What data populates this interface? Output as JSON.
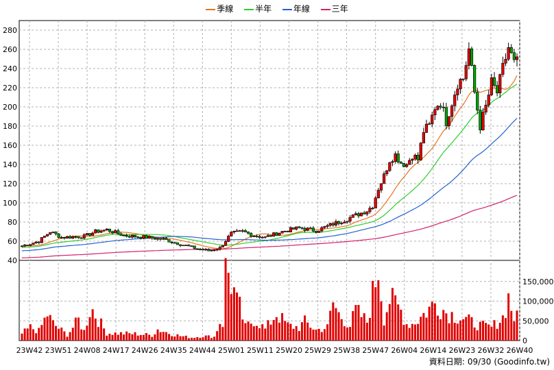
{
  "chart_data": {
    "type": "candlestick",
    "legend": [
      {
        "name": "季線",
        "color": "#e8731a"
      },
      {
        "name": "半年",
        "color": "#2ecc2e"
      },
      {
        "name": "年線",
        "color": "#2060d0"
      },
      {
        "name": "三年",
        "color": "#d0206a"
      }
    ],
    "price_axis": {
      "ylim": [
        40,
        290
      ],
      "ticks": [
        40,
        60,
        80,
        100,
        120,
        140,
        160,
        180,
        200,
        220,
        240,
        260,
        280
      ]
    },
    "volume_axis": {
      "ylim": [
        0,
        200000
      ],
      "ticks": [
        0,
        50000,
        100000,
        150000
      ],
      "tick_labels": [
        "0",
        "50,000",
        "100,000",
        "150,000"
      ]
    },
    "x_ticks": [
      "23W42",
      "23W51",
      "24W08",
      "24W17",
      "24W26",
      "24W35",
      "24W44",
      "25W01",
      "25W11",
      "25W20",
      "25W29",
      "25W38",
      "25W47",
      "26W04",
      "26W14",
      "26W23",
      "26W32",
      "26W40"
    ],
    "close_anchors": [
      [
        0,
        55
      ],
      [
        6,
        60
      ],
      [
        10,
        70
      ],
      [
        14,
        64
      ],
      [
        22,
        65
      ],
      [
        26,
        70
      ],
      [
        30,
        72
      ],
      [
        36,
        66
      ],
      [
        44,
        64
      ],
      [
        50,
        62
      ],
      [
        56,
        57
      ],
      [
        62,
        52
      ],
      [
        66,
        50
      ],
      [
        70,
        53
      ],
      [
        74,
        68
      ],
      [
        78,
        70
      ],
      [
        82,
        66
      ],
      [
        86,
        64
      ],
      [
        92,
        70
      ],
      [
        98,
        74
      ],
      [
        104,
        71
      ],
      [
        110,
        78
      ],
      [
        114,
        82
      ],
      [
        118,
        87
      ],
      [
        122,
        92
      ],
      [
        124,
        97
      ],
      [
        126,
        115
      ],
      [
        128,
        128
      ],
      [
        130,
        145
      ],
      [
        132,
        150
      ],
      [
        134,
        142
      ],
      [
        136,
        140
      ],
      [
        138,
        150
      ],
      [
        140,
        145
      ],
      [
        142,
        175
      ],
      [
        144,
        180
      ],
      [
        146,
        200
      ],
      [
        148,
        205
      ],
      [
        150,
        185
      ],
      [
        152,
        205
      ],
      [
        154,
        225
      ],
      [
        156,
        230
      ],
      [
        158,
        260
      ],
      [
        160,
        215
      ],
      [
        162,
        180
      ],
      [
        164,
        200
      ],
      [
        166,
        225
      ],
      [
        168,
        215
      ],
      [
        170,
        240
      ],
      [
        172,
        262
      ],
      [
        174,
        245
      ]
    ],
    "volume_anchors": [
      [
        0,
        18000
      ],
      [
        3,
        35000
      ],
      [
        6,
        25000
      ],
      [
        9,
        70000
      ],
      [
        11,
        45000
      ],
      [
        16,
        15000
      ],
      [
        20,
        55000
      ],
      [
        22,
        25000
      ],
      [
        24,
        80000
      ],
      [
        25,
        82000
      ],
      [
        26,
        68000
      ],
      [
        30,
        20000
      ],
      [
        40,
        18000
      ],
      [
        46,
        14000
      ],
      [
        48,
        30000
      ],
      [
        52,
        20000
      ],
      [
        56,
        12000
      ],
      [
        60,
        8000
      ],
      [
        64,
        12000
      ],
      [
        68,
        10000
      ],
      [
        70,
        50000
      ],
      [
        71,
        45000
      ],
      [
        72,
        188000
      ],
      [
        73,
        182000
      ],
      [
        74,
        155000
      ],
      [
        75,
        130000
      ],
      [
        76,
        100000
      ],
      [
        77,
        88000
      ],
      [
        79,
        35000
      ],
      [
        82,
        55000
      ],
      [
        84,
        45000
      ],
      [
        86,
        30000
      ],
      [
        90,
        72000
      ],
      [
        94,
        40000
      ],
      [
        98,
        35000
      ],
      [
        100,
        50000
      ],
      [
        104,
        28000
      ],
      [
        108,
        35000
      ],
      [
        110,
        100000
      ],
      [
        112,
        70000
      ],
      [
        116,
        40000
      ],
      [
        118,
        80000
      ],
      [
        122,
        50000
      ],
      [
        126,
        198000
      ],
      [
        128,
        60000
      ],
      [
        130,
        110000
      ],
      [
        132,
        98000
      ],
      [
        134,
        80000
      ],
      [
        136,
        45000
      ],
      [
        138,
        45000
      ],
      [
        140,
        55000
      ],
      [
        144,
        85000
      ],
      [
        146,
        100000
      ],
      [
        148,
        90000
      ],
      [
        150,
        75000
      ],
      [
        152,
        70000
      ],
      [
        156,
        60000
      ],
      [
        158,
        52000
      ],
      [
        162,
        40000
      ],
      [
        166,
        35000
      ],
      [
        170,
        62000
      ],
      [
        172,
        115000
      ],
      [
        174,
        60000
      ]
    ],
    "candle_count": 176
  },
  "footer": {
    "date_label": "資料日期:",
    "date_value": "09/30",
    "source": "(Goodinfo.tw)"
  }
}
